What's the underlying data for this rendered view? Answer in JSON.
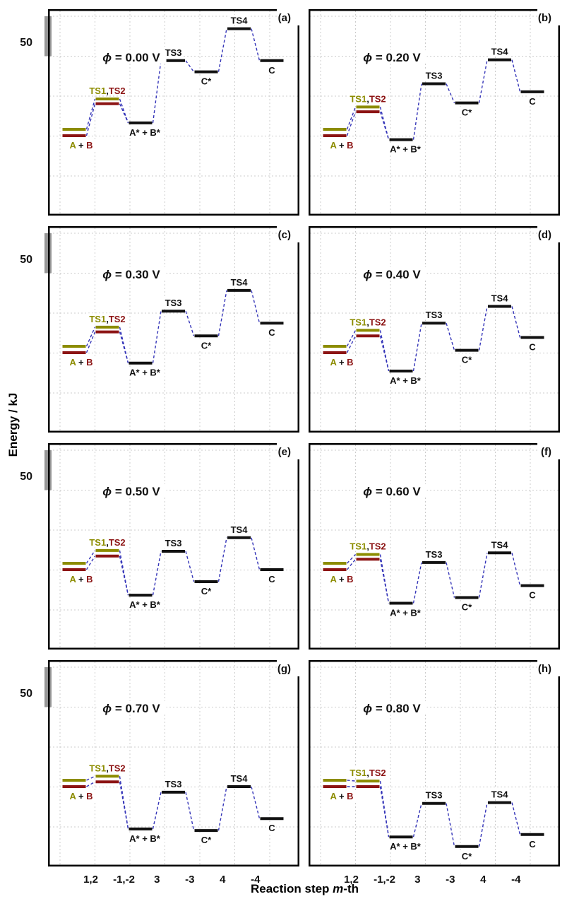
{
  "figure": {
    "ylabel": "Energy / kJ",
    "xlabel": {
      "pre": "Reaction step ",
      "italic": "m",
      "post": "-th"
    },
    "scale_bar": {
      "label": "50"
    },
    "colors": {
      "olive": "#8c8c00",
      "darkred": "#8c1414",
      "black": "#111111",
      "connector": "#3434b8",
      "grid": "#cccccc",
      "scalebar": "#969696",
      "border": "#000000",
      "label_bg": "#ffffff"
    }
  },
  "chart_data": {
    "type": "energy_level_diagram",
    "y_axis_title": "Energy / kJ",
    "x_axis_title": "Reaction step m-th",
    "units": "kJ",
    "scale_bar_kj": 50,
    "reference": "A + B (B level) = 0 kJ in every panel",
    "level_order": [
      "A+B",
      "TS1,TS2",
      "A*+B*",
      "TS3",
      "C*",
      "TS4",
      "C"
    ],
    "x_ticks": [
      "1,2",
      "-1,-2",
      "3",
      "-3",
      "4",
      "-4"
    ],
    "labels": {
      "AB_parts": [
        [
          "A",
          "olive"
        ],
        [
          " + ",
          "black"
        ],
        [
          "B",
          "darkred"
        ]
      ],
      "TS12_parts": [
        [
          "TS1",
          "olive"
        ],
        [
          ",",
          "black"
        ],
        [
          "TS2",
          "darkred"
        ]
      ],
      "AsBs": "A* + B*",
      "TS3": "TS3",
      "Cs": "C*",
      "TS4": "TS4",
      "C": "C"
    },
    "panels": [
      {
        "id": "a",
        "corner_label": "(a)",
        "phi_label": "ϕ = 0.00 V",
        "show_scale_bar": true,
        "show_x_ticks": false,
        "energies_kJ": {
          "A": 8,
          "B": 0,
          "TS1": 46,
          "TS2": 40,
          "AsBs": 16,
          "TS3": 94,
          "Cs": 80,
          "TS4": 134,
          "C": 94
        }
      },
      {
        "id": "b",
        "corner_label": "(b)",
        "phi_label": "ϕ = 0.20 V",
        "show_scale_bar": false,
        "show_x_ticks": false,
        "energies_kJ": {
          "A": 8,
          "B": 0,
          "TS1": 36,
          "TS2": 30,
          "AsBs": -5,
          "TS3": 65,
          "Cs": 41,
          "TS4": 95,
          "C": 55
        }
      },
      {
        "id": "c",
        "corner_label": "(c)",
        "phi_label": "ϕ = 0.30 V",
        "show_scale_bar": true,
        "show_x_ticks": false,
        "energies_kJ": {
          "A": 8,
          "B": 0,
          "TS1": 32,
          "TS2": 26,
          "AsBs": -13,
          "TS3": 52,
          "Cs": 21,
          "TS4": 78,
          "C": 37
        }
      },
      {
        "id": "d",
        "corner_label": "(d)",
        "phi_label": "ϕ = 0.40 V",
        "show_scale_bar": false,
        "show_x_ticks": false,
        "energies_kJ": {
          "A": 8,
          "B": 0,
          "TS1": 28,
          "TS2": 21,
          "AsBs": -23,
          "TS3": 37,
          "Cs": 3,
          "TS4": 58,
          "C": 19
        }
      },
      {
        "id": "e",
        "corner_label": "(e)",
        "phi_label": "ϕ = 0.50 V",
        "show_scale_bar": true,
        "show_x_ticks": false,
        "energies_kJ": {
          "A": 8,
          "B": 0,
          "TS1": 24,
          "TS2": 17,
          "AsBs": -32,
          "TS3": 23,
          "Cs": -15,
          "TS4": 40,
          "C": 0
        }
      },
      {
        "id": "f",
        "corner_label": "(f)",
        "phi_label": "ϕ = 0.60 V",
        "show_scale_bar": false,
        "show_x_ticks": false,
        "energies_kJ": {
          "A": 8,
          "B": 0,
          "TS1": 19,
          "TS2": 13,
          "AsBs": -42,
          "TS3": 9,
          "Cs": -35,
          "TS4": 21,
          "C": -20
        }
      },
      {
        "id": "g",
        "corner_label": "(g)",
        "phi_label": "ϕ = 0.70 V",
        "show_scale_bar": true,
        "show_x_ticks": true,
        "energies_kJ": {
          "A": 8,
          "B": 0,
          "TS1": 13,
          "TS2": 6,
          "AsBs": -53,
          "TS3": -7,
          "Cs": -55,
          "TS4": 0,
          "C": -40
        }
      },
      {
        "id": "h",
        "corner_label": "(h)",
        "phi_label": "ϕ = 0.80 V",
        "show_scale_bar": false,
        "show_x_ticks": true,
        "energies_kJ": {
          "A": 8,
          "B": 0,
          "TS1": 7,
          "TS2": 0,
          "AsBs": -63,
          "TS3": -21,
          "Cs": -75,
          "TS4": -20,
          "C": -60
        }
      }
    ]
  }
}
